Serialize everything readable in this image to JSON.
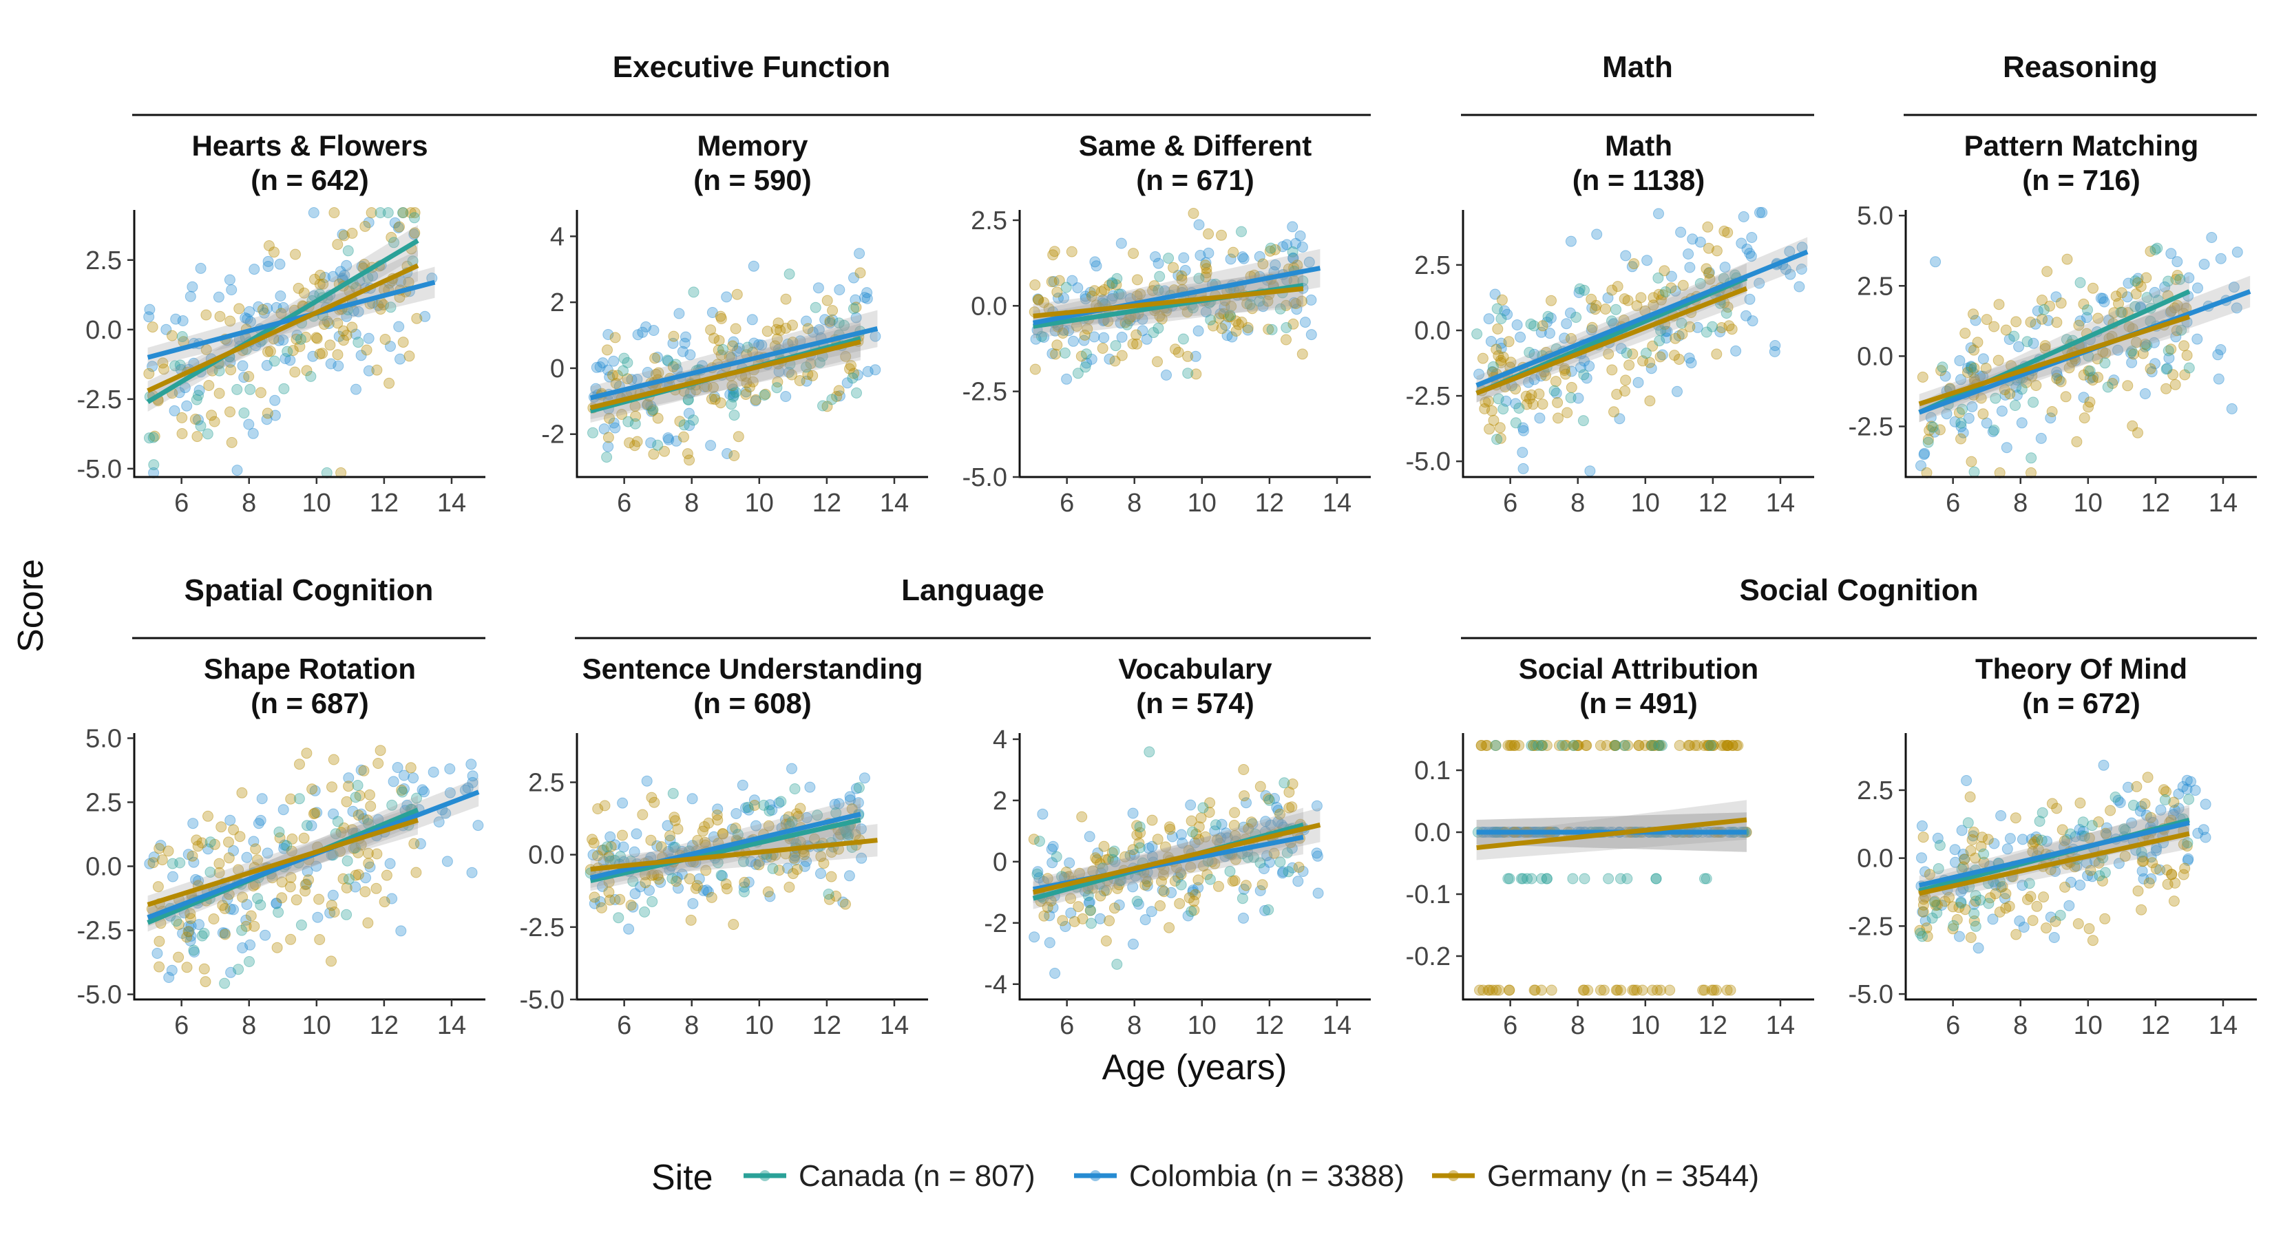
{
  "chart_data": {
    "type": "scatter",
    "xlabel": "Age (years)",
    "ylabel": "Score",
    "legend": {
      "title": "Site",
      "position": "bottom",
      "entries": [
        {
          "key": "canada",
          "label": "Canada (n = 807)",
          "color": "#2aa198"
        },
        {
          "key": "colombia",
          "label": "Colombia (n = 3388)",
          "color": "#268bd2"
        },
        {
          "key": "germany",
          "label": "Germany (n = 3544)",
          "color": "#b58900"
        }
      ]
    },
    "groups": [
      {
        "label": "Executive Function",
        "row": 0,
        "from": 0,
        "to": 2
      },
      {
        "label": "Math",
        "row": 0,
        "from": 3,
        "to": 3
      },
      {
        "label": "Reasoning",
        "row": 0,
        "from": 4,
        "to": 4
      },
      {
        "label": "Spatial Cognition",
        "row": 1,
        "from": 0,
        "to": 0
      },
      {
        "label": "Language",
        "row": 1,
        "from": 1,
        "to": 2
      },
      {
        "label": "Social Cognition",
        "row": 1,
        "from": 3,
        "to": 4
      }
    ],
    "panels": [
      {
        "title": "Hearts & Flowers",
        "n": "(n = 642)",
        "row": 0,
        "col": 0,
        "xlim": [
          4.6,
          15
        ],
        "xticks": [
          6,
          8,
          10,
          12,
          14
        ],
        "ylim": [
          -5.3,
          4.3
        ],
        "yticks": [
          -5.0,
          -2.5,
          0.0,
          2.5
        ],
        "ytick_labels": [
          "-5.0",
          "-2.5",
          "0.0",
          "2.5"
        ],
        "spread": 1.6,
        "xmax": 13.5,
        "fits": {
          "canada": [
            5,
            -2.6,
            13,
            3.2
          ],
          "colombia": [
            5,
            -1.0,
            13.5,
            1.7
          ],
          "germany": [
            5,
            -2.2,
            13,
            2.3
          ]
        }
      },
      {
        "title": "Memory",
        "n": "(n = 590)",
        "row": 0,
        "col": 1,
        "xlim": [
          4.6,
          15
        ],
        "xticks": [
          6,
          8,
          10,
          12,
          14
        ],
        "ylim": [
          -3.3,
          4.8
        ],
        "yticks": [
          -2,
          0,
          2,
          4
        ],
        "ytick_labels": [
          "-2",
          "0",
          "2",
          "4"
        ],
        "spread": 1.0,
        "xmax": 13.5,
        "fits": {
          "canada": [
            5,
            -1.3,
            13,
            0.9
          ],
          "colombia": [
            5,
            -0.9,
            13.5,
            1.2
          ],
          "germany": [
            5,
            -1.2,
            13,
            0.8
          ]
        }
      },
      {
        "title": "Same & Different",
        "n": "(n = 671)",
        "row": 0,
        "col": 2,
        "xlim": [
          4.6,
          15
        ],
        "xticks": [
          6,
          8,
          10,
          12,
          14
        ],
        "ylim": [
          -5.0,
          2.8
        ],
        "yticks": [
          -5.0,
          -2.5,
          0.0,
          2.5
        ],
        "ytick_labels": [
          "-5.0",
          "-2.5",
          "0.0",
          "2.5"
        ],
        "spread": 0.9,
        "xmax": 13.5,
        "fits": {
          "canada": [
            5,
            -0.6,
            13,
            0.6
          ],
          "colombia": [
            5,
            -0.5,
            13.5,
            1.1
          ],
          "germany": [
            5,
            -0.3,
            13,
            0.5
          ]
        }
      },
      {
        "title": "Math",
        "n": "(n = 1138)",
        "row": 0,
        "col": 3,
        "xlim": [
          4.6,
          15
        ],
        "xticks": [
          6,
          8,
          10,
          12,
          14
        ],
        "ylim": [
          -5.6,
          4.6
        ],
        "yticks": [
          -5.0,
          -2.5,
          0.0,
          2.5
        ],
        "ytick_labels": [
          "-5.0",
          "-2.5",
          "0.0",
          "2.5"
        ],
        "spread": 1.3,
        "xmax": 14.8,
        "fits": {
          "canada": [
            5,
            -2.4,
            13,
            2.0
          ],
          "colombia": [
            5,
            -2.1,
            14.8,
            3.0
          ],
          "germany": [
            5,
            -2.4,
            13,
            1.6
          ]
        }
      },
      {
        "title": "Pattern Matching",
        "n": "(n = 716)",
        "row": 0,
        "col": 4,
        "xlim": [
          4.6,
          15
        ],
        "xticks": [
          6,
          8,
          10,
          12,
          14
        ],
        "ylim": [
          -4.3,
          5.2
        ],
        "yticks": [
          -2.5,
          0.0,
          2.5,
          5.0
        ],
        "ytick_labels": [
          "-2.5",
          "0.0",
          "2.5",
          "5.0"
        ],
        "spread": 1.5,
        "xmax": 14.8,
        "fits": {
          "canada": [
            5,
            -2.0,
            13,
            2.3
          ],
          "colombia": [
            5,
            -2.0,
            14.8,
            2.3
          ],
          "germany": [
            5,
            -1.7,
            13,
            1.4
          ]
        }
      },
      {
        "title": "Shape Rotation",
        "n": "(n = 687)",
        "row": 1,
        "col": 0,
        "xlim": [
          4.6,
          15
        ],
        "xticks": [
          6,
          8,
          10,
          12,
          14
        ],
        "ylim": [
          -5.2,
          5.2
        ],
        "yticks": [
          -5.0,
          -2.5,
          0.0,
          2.5,
          5.0
        ],
        "ytick_labels": [
          "-5.0",
          "-2.5",
          "0.0",
          "2.5",
          "5.0"
        ],
        "spread": 1.6,
        "xmax": 14.8,
        "fits": {
          "canada": [
            5,
            -2.2,
            13,
            2.2
          ],
          "colombia": [
            5,
            -2.0,
            14.8,
            2.9
          ],
          "germany": [
            5,
            -1.5,
            13,
            1.8
          ]
        }
      },
      {
        "title": "Sentence Understanding",
        "n": "(n = 608)",
        "row": 1,
        "col": 1,
        "xlim": [
          4.6,
          15
        ],
        "xticks": [
          6,
          8,
          10,
          12,
          14
        ],
        "ylim": [
          -5.0,
          4.2
        ],
        "yticks": [
          -5.0,
          -2.5,
          0.0,
          2.5
        ],
        "ytick_labels": [
          "-5.0",
          "-2.5",
          "0.0",
          "2.5"
        ],
        "spread": 0.9,
        "xmax": 13.5,
        "fits": {
          "canada": [
            5,
            -0.9,
            13,
            1.2
          ],
          "colombia": [
            5,
            -0.8,
            13,
            1.4
          ],
          "germany": [
            5,
            -0.5,
            13.5,
            0.5
          ]
        }
      },
      {
        "title": "Vocabulary",
        "n": "(n = 574)",
        "row": 1,
        "col": 2,
        "xlim": [
          4.6,
          15
        ],
        "xticks": [
          6,
          8,
          10,
          12,
          14
        ],
        "ylim": [
          -4.5,
          4.2
        ],
        "yticks": [
          -4,
          -2,
          0,
          2,
          4
        ],
        "ytick_labels": [
          "-4",
          "-2",
          "0",
          "2",
          "4"
        ],
        "spread": 1.0,
        "xmax": 13.5,
        "fits": {
          "canada": [
            5,
            -1.2,
            13,
            1.2
          ],
          "colombia": [
            5,
            -0.9,
            13,
            0.8
          ],
          "germany": [
            5,
            -1.0,
            13.5,
            1.2
          ]
        }
      },
      {
        "title": "Social Attribution",
        "n": "(n = 491)",
        "row": 1,
        "col": 3,
        "xlim": [
          4.6,
          15
        ],
        "xticks": [
          6,
          8,
          10,
          12,
          14
        ],
        "ylim": [
          -0.27,
          0.16
        ],
        "yticks": [
          -0.2,
          -0.1,
          0.0,
          0.1
        ],
        "ytick_labels": [
          "-0.2",
          "-0.1",
          "0.0",
          "0.1"
        ],
        "discrete": [
          0.14,
          0.0,
          -0.075,
          -0.255
        ],
        "xmax": 13,
        "fits": {
          "canada": [
            5,
            0.0,
            13,
            0.0
          ],
          "colombia": [
            5,
            0.0,
            13,
            0.0
          ],
          "germany": [
            5,
            -0.025,
            13,
            0.02
          ]
        }
      },
      {
        "title": "Theory Of Mind",
        "n": "(n = 672)",
        "row": 1,
        "col": 4,
        "xlim": [
          4.6,
          15
        ],
        "xticks": [
          6,
          8,
          10,
          12,
          14
        ],
        "ylim": [
          -5.2,
          4.6
        ],
        "yticks": [
          -5.0,
          -2.5,
          0.0,
          2.5
        ],
        "ytick_labels": [
          "-5.0",
          "-2.5",
          "0.0",
          "2.5"
        ],
        "spread": 1.2,
        "xmax": 13.5,
        "fits": {
          "canada": [
            5,
            -1.2,
            13,
            1.4
          ],
          "colombia": [
            5,
            -1.0,
            13,
            1.3
          ],
          "germany": [
            5,
            -1.3,
            13,
            0.9
          ]
        }
      }
    ]
  }
}
